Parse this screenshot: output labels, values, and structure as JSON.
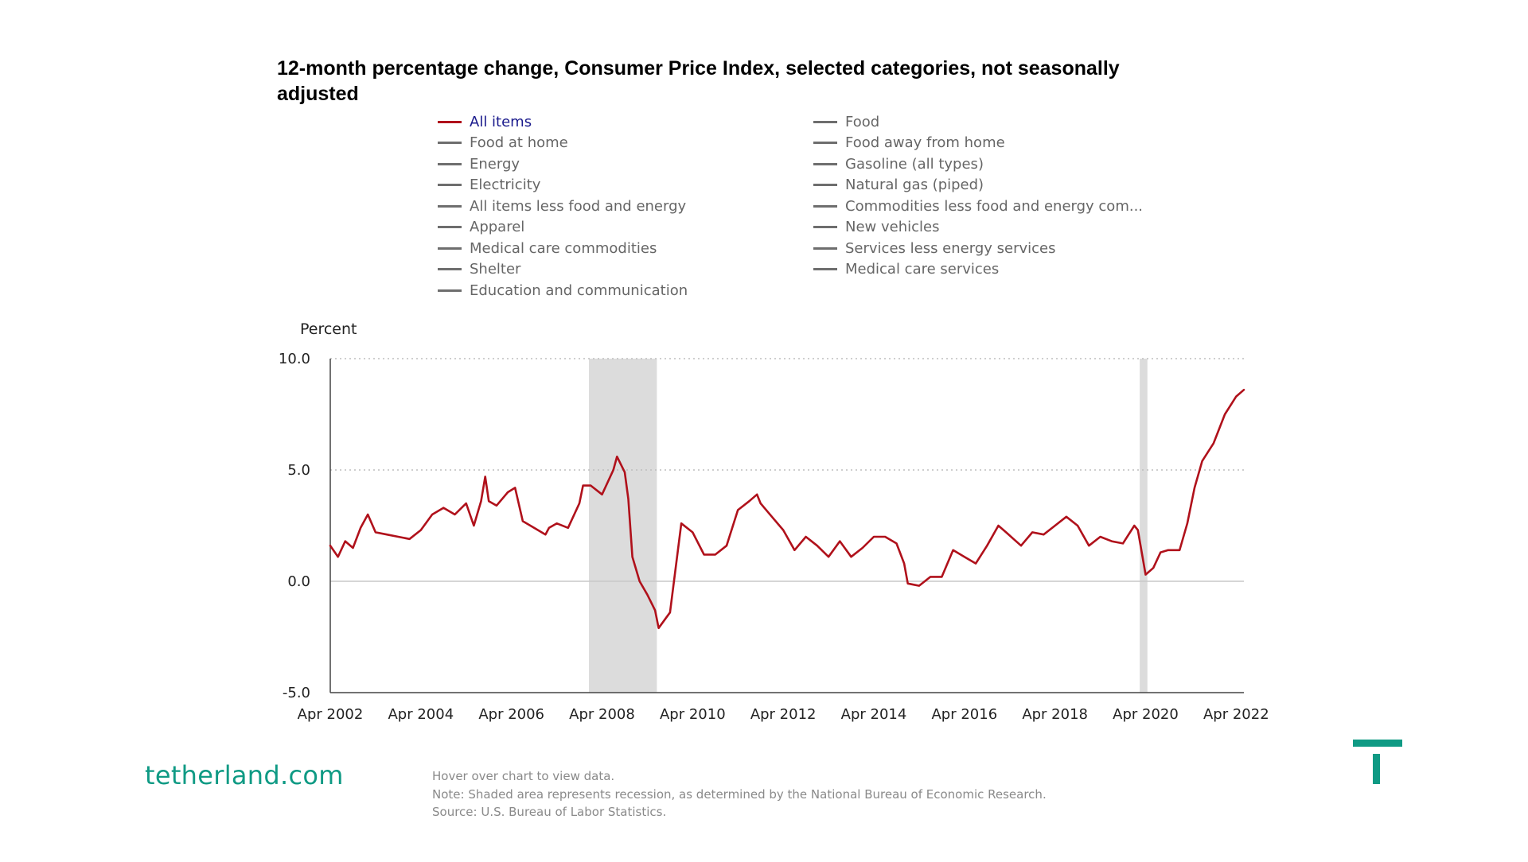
{
  "brand": {
    "site": "tetherland.com",
    "accent_color": "#0f9a84"
  },
  "footer_notes": {
    "hover": "Hover over chart to view data.",
    "note": "Note: Shaded area represents recession, as determined by the National Bureau of Economic Research.",
    "source": "Source: U.S. Bureau of Labor Statistics."
  },
  "legend": {
    "left": [
      "All items",
      "Food at home",
      "Energy",
      "Electricity",
      "All items less food and energy",
      "Apparel",
      "Medical care commodities",
      "Shelter",
      "Education and communication"
    ],
    "right": [
      "Food",
      "Food away from home",
      "Gasoline (all types)",
      "Natural gas (piped)",
      "Commodities less food and energy com...",
      "New vehicles",
      "Services less energy services",
      "Medical care services"
    ]
  },
  "chart_data": {
    "type": "line",
    "title": "12-month percentage change, Consumer Price Index, selected categories, not seasonally adjusted",
    "ylabel": "Percent",
    "xlabel": "",
    "ylim": [
      -5,
      10
    ],
    "yticks": [
      10,
      5,
      0,
      -5
    ],
    "ytick_labels": [
      "10.0",
      "5.0",
      "0.0",
      "-5.0"
    ],
    "xlim": [
      2002.25,
      2022.42
    ],
    "xticks": [
      2002.25,
      2004.25,
      2006.25,
      2008.25,
      2010.25,
      2012.25,
      2014.25,
      2016.25,
      2018.25,
      2020.25,
      2022.25
    ],
    "xtick_labels": [
      "Apr 2002",
      "Apr 2004",
      "Apr 2006",
      "Apr 2008",
      "Apr 2010",
      "Apr 2012",
      "Apr 2014",
      "Apr 2016",
      "Apr 2018",
      "Apr 2020",
      "Apr 2022"
    ],
    "recessions": [
      [
        2007.96,
        2009.46
      ],
      [
        2020.12,
        2020.29
      ]
    ],
    "series": [
      {
        "name": "All items",
        "color": "#b0111b",
        "x": [
          2002.25,
          2002.42,
          2002.58,
          2002.75,
          2002.92,
          2003.08,
          2003.25,
          2003.5,
          2003.75,
          2004.0,
          2004.25,
          2004.5,
          2004.75,
          2005.0,
          2005.25,
          2005.42,
          2005.58,
          2005.67,
          2005.75,
          2005.92,
          2006.17,
          2006.33,
          2006.5,
          2006.75,
          2007.0,
          2007.08,
          2007.25,
          2007.5,
          2007.75,
          2007.83,
          2008.0,
          2008.25,
          2008.5,
          2008.58,
          2008.75,
          2008.83,
          2008.92,
          2009.08,
          2009.25,
          2009.42,
          2009.5,
          2009.75,
          2010.0,
          2010.25,
          2010.5,
          2010.75,
          2011.0,
          2011.25,
          2011.5,
          2011.67,
          2011.75,
          2012.0,
          2012.25,
          2012.5,
          2012.75,
          2013.0,
          2013.25,
          2013.5,
          2013.75,
          2014.0,
          2014.25,
          2014.5,
          2014.75,
          2014.92,
          2015.0,
          2015.25,
          2015.5,
          2015.75,
          2016.0,
          2016.25,
          2016.5,
          2016.75,
          2017.0,
          2017.17,
          2017.5,
          2017.75,
          2018.0,
          2018.25,
          2018.5,
          2018.75,
          2019.0,
          2019.25,
          2019.5,
          2019.75,
          2020.0,
          2020.08,
          2020.25,
          2020.42,
          2020.58,
          2020.75,
          2021.0,
          2021.17,
          2021.33,
          2021.5,
          2021.75,
          2022.0,
          2022.25,
          2022.42
        ],
        "values": [
          1.6,
          1.1,
          1.8,
          1.5,
          2.4,
          3.0,
          2.2,
          2.1,
          2.0,
          1.9,
          2.3,
          3.0,
          3.3,
          3.0,
          3.5,
          2.5,
          3.6,
          4.7,
          3.6,
          3.4,
          4.0,
          4.2,
          2.7,
          2.4,
          2.1,
          2.4,
          2.6,
          2.4,
          3.5,
          4.3,
          4.3,
          3.9,
          5.0,
          5.6,
          4.9,
          3.7,
          1.1,
          0.0,
          -0.6,
          -1.3,
          -2.1,
          -1.4,
          2.6,
          2.2,
          1.2,
          1.2,
          1.6,
          3.2,
          3.6,
          3.9,
          3.5,
          2.9,
          2.3,
          1.4,
          2.0,
          1.6,
          1.1,
          1.8,
          1.1,
          1.5,
          2.0,
          2.0,
          1.7,
          0.8,
          -0.1,
          -0.2,
          0.2,
          0.2,
          1.4,
          1.1,
          0.8,
          1.6,
          2.5,
          2.2,
          1.6,
          2.2,
          2.1,
          2.5,
          2.9,
          2.5,
          1.6,
          2.0,
          1.8,
          1.7,
          2.5,
          2.3,
          0.3,
          0.6,
          1.3,
          1.4,
          1.4,
          2.6,
          4.2,
          5.4,
          6.2,
          7.5,
          8.3,
          8.6
        ]
      }
    ]
  }
}
